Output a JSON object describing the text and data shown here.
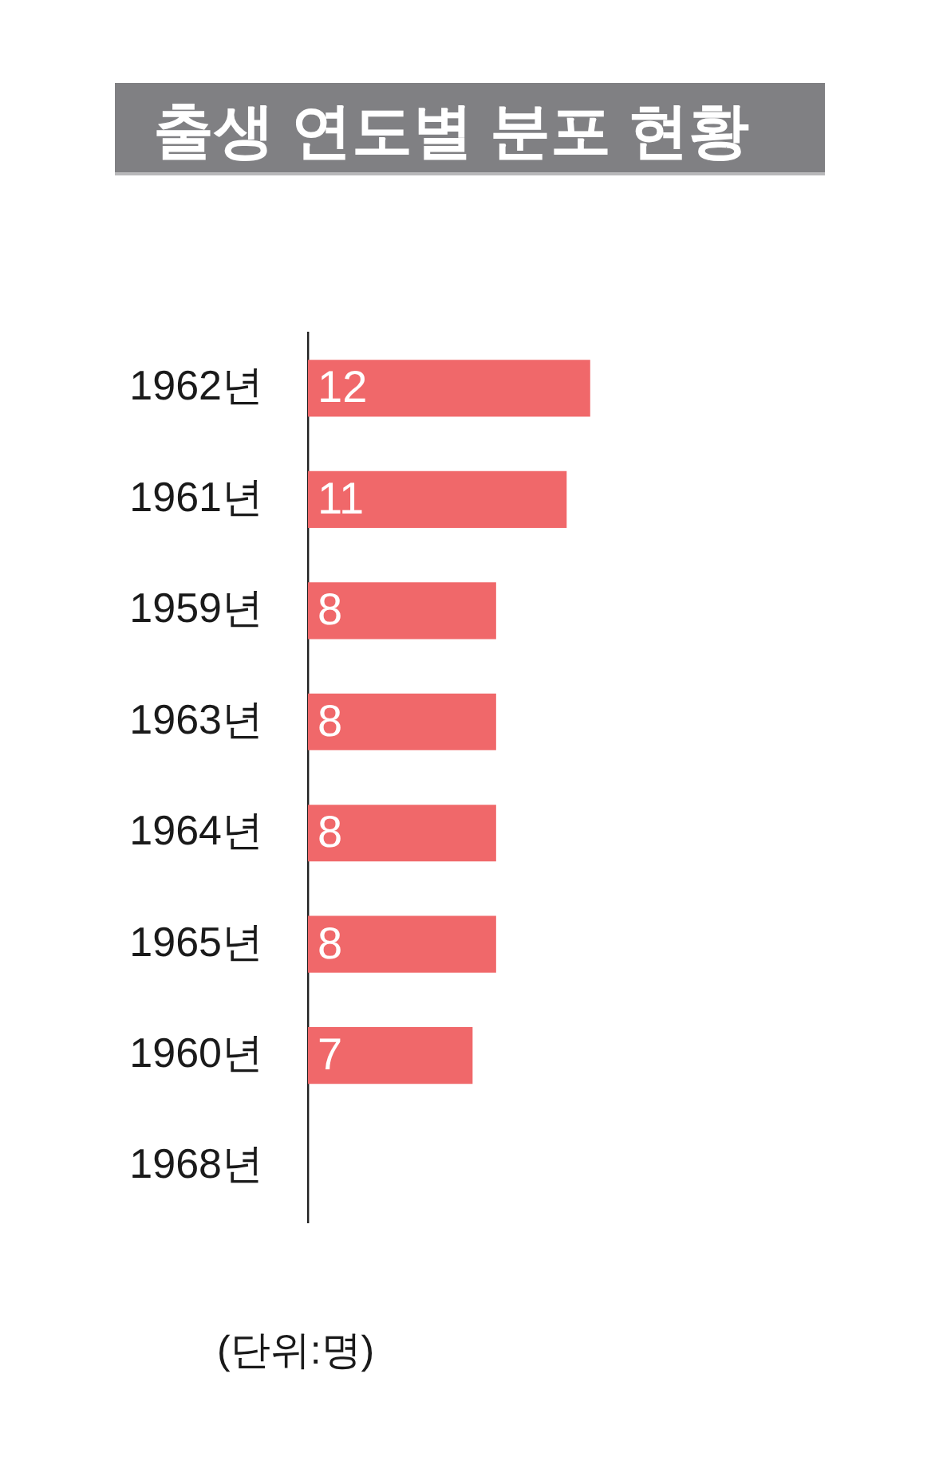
{
  "chart_data": {
    "type": "bar",
    "orientation": "horizontal",
    "title": "출생 연도별 분포 현황",
    "categories": [
      "1962년",
      "1961년",
      "1959년",
      "1963년",
      "1964년",
      "1965년",
      "1960년",
      "1968년"
    ],
    "values": [
      12,
      11,
      8,
      8,
      8,
      8,
      7,
      null
    ],
    "color": "#f0686a",
    "xlim": [
      0,
      27
    ],
    "data_labels": true,
    "legend": false,
    "tick_labels": "y",
    "annotations": [
      "(단위:명)"
    ]
  }
}
